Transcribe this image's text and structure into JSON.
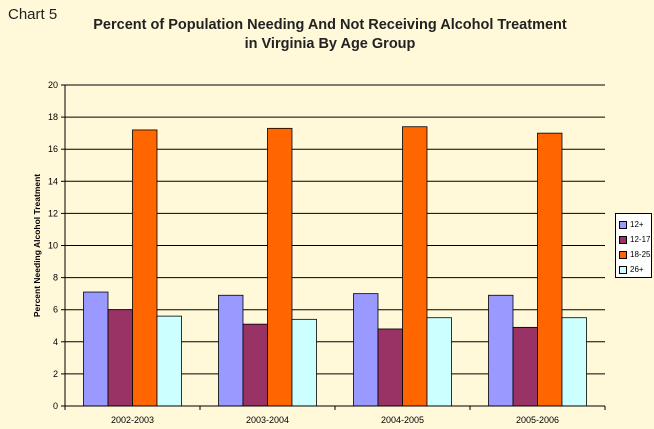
{
  "header": {
    "chart_label": "Chart 5"
  },
  "chart_data": {
    "type": "bar",
    "title": [
      "Percent of Population Needing And Not Receiving Alcohol Treatment",
      "in Virginia By Age Group"
    ],
    "xlabel": "",
    "ylabel": "Percent Needing Alcohol Treatment",
    "ylim": [
      0,
      20
    ],
    "yticks": [
      "0",
      "2",
      "4",
      "6",
      "8",
      "10",
      "12",
      "14",
      "16",
      "18",
      "20"
    ],
    "grid": true,
    "legend_position": "right",
    "categories": [
      "2002-2003",
      "2003-2004",
      "2004-2005",
      "2005-2006"
    ],
    "series": [
      {
        "name": "12+",
        "color": "#9999FF",
        "values": [
          7.1,
          6.9,
          7.0,
          6.9
        ]
      },
      {
        "name": "12-17",
        "color": "#993366",
        "values": [
          6.0,
          5.1,
          4.8,
          4.9
        ]
      },
      {
        "name": "18-25",
        "color": "#FF6600",
        "values": [
          17.2,
          17.3,
          17.4,
          17.0
        ]
      },
      {
        "name": "26+",
        "color": "#CCFFFF",
        "values": [
          5.6,
          5.4,
          5.5,
          5.5
        ]
      }
    ]
  }
}
